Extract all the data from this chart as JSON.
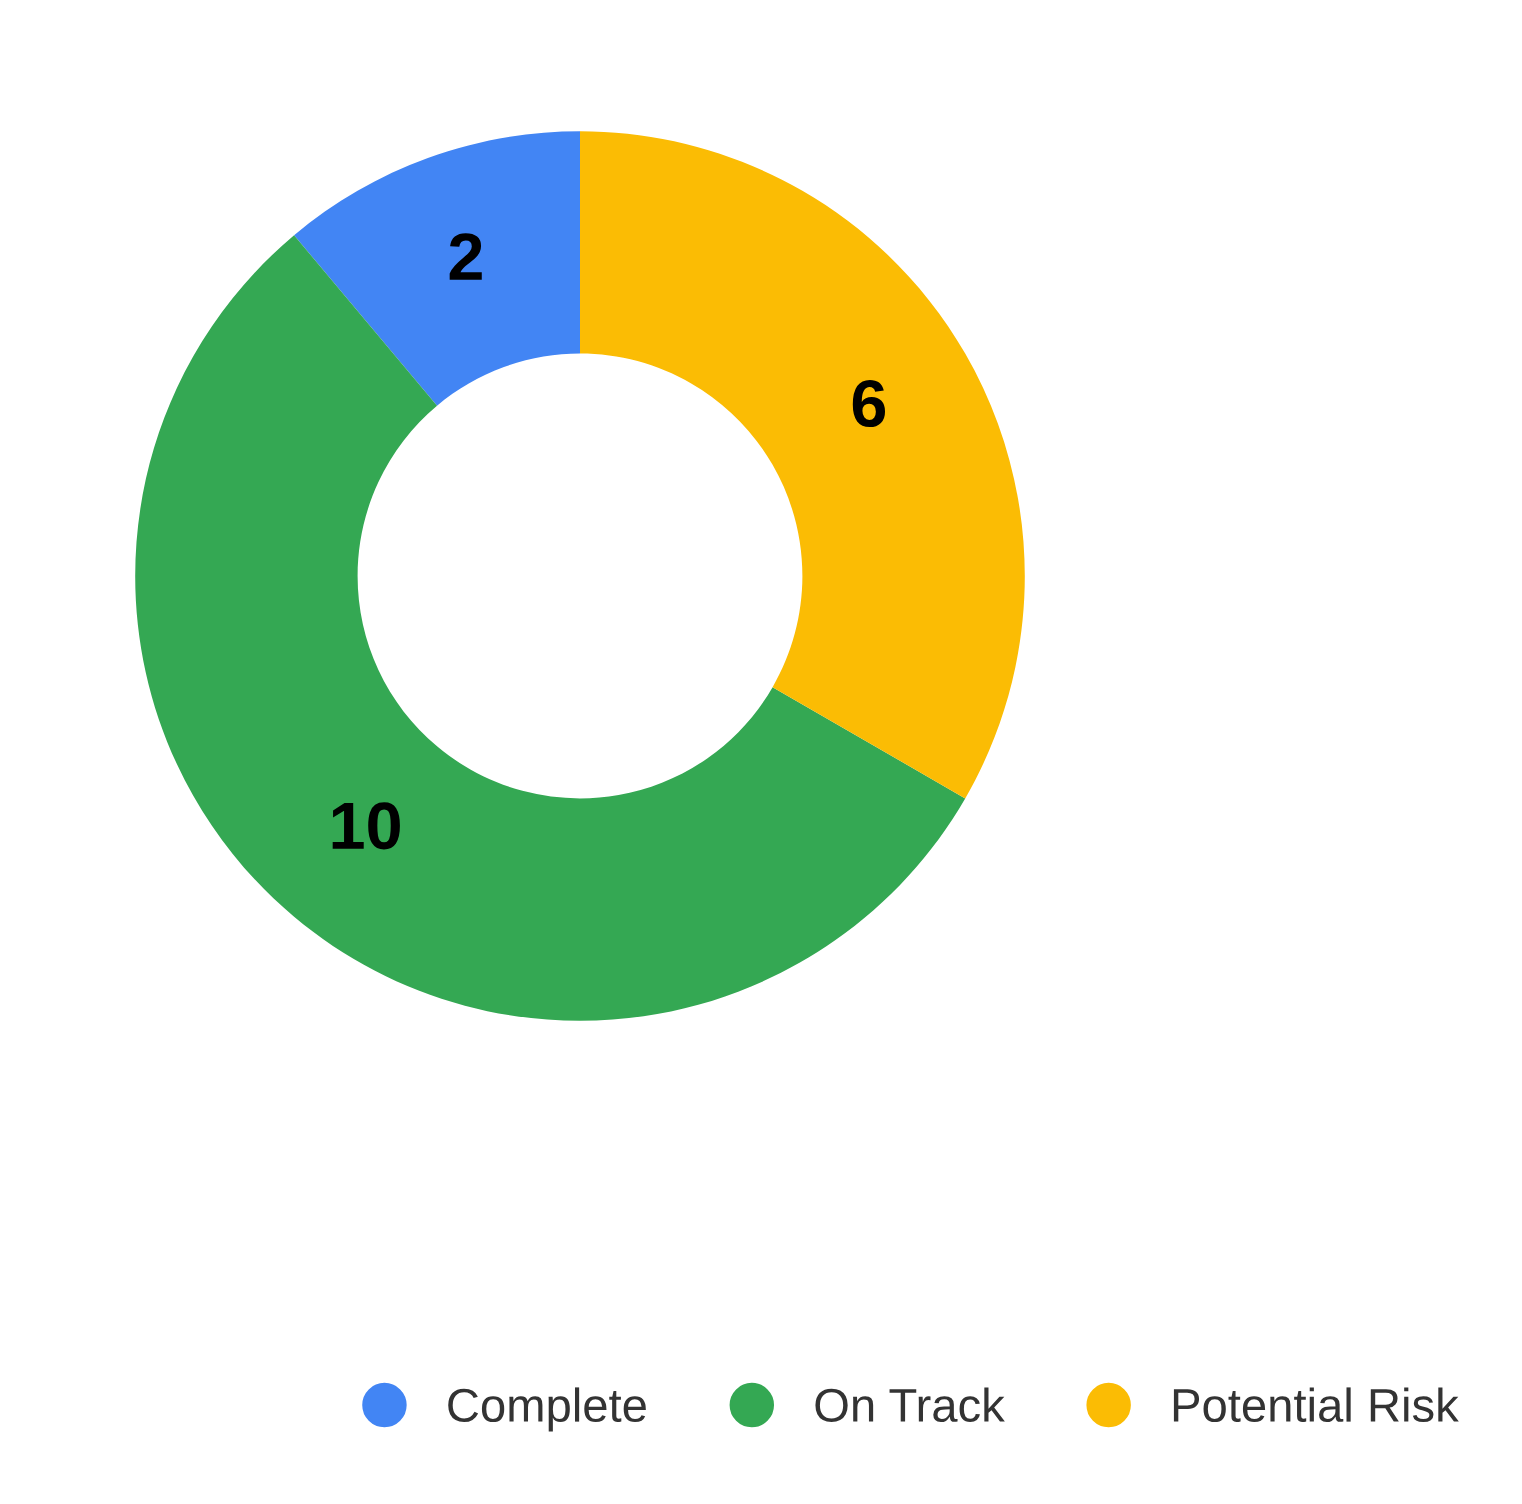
{
  "chart_data": {
    "type": "donut",
    "categories": [
      "Complete",
      "On Track",
      "Potential Risk"
    ],
    "values": [
      2,
      10,
      6
    ],
    "colors": [
      "#4285f4",
      "#34a853",
      "#fbbc04"
    ],
    "data_labels": true,
    "legend": "bottom"
  }
}
